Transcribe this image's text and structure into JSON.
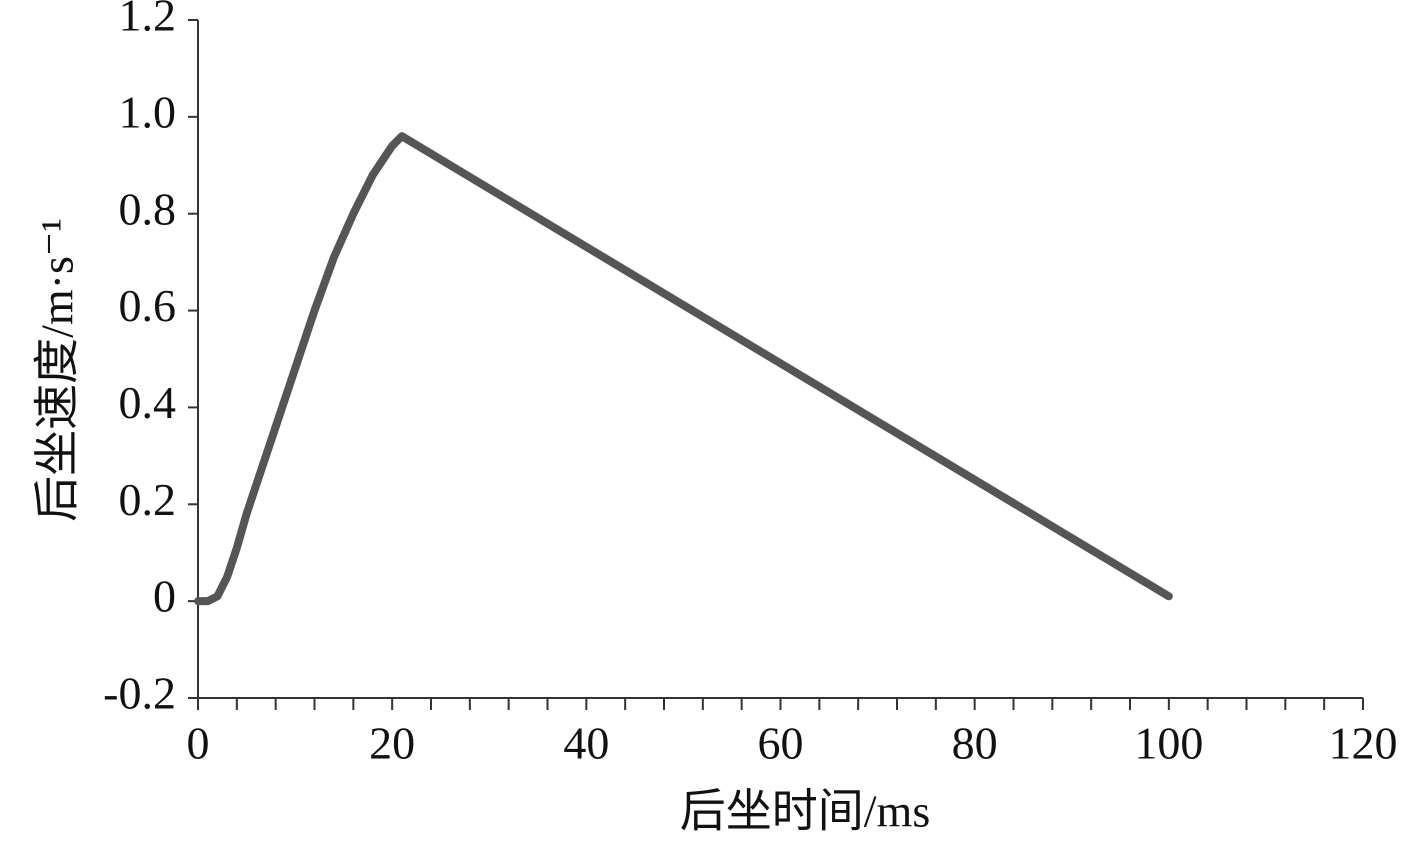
{
  "chart_data": {
    "type": "line",
    "xlabel": "后坐时间/ms",
    "ylabel": "后坐速度/m·s⁻¹",
    "x": [
      0,
      1,
      2,
      3,
      4,
      5,
      6,
      8,
      10,
      12,
      14,
      16,
      18,
      20,
      21,
      100
    ],
    "series": [
      {
        "color": "#555555",
        "values": [
          0,
          0,
          0.01,
          0.05,
          0.11,
          0.18,
          0.24,
          0.36,
          0.48,
          0.6,
          0.71,
          0.8,
          0.88,
          0.94,
          0.96,
          0.01
        ]
      }
    ],
    "xlim": [
      0,
      120
    ],
    "xticks": [
      0,
      20,
      40,
      60,
      80,
      100,
      120
    ],
    "x_minor_ticks": [
      4,
      8,
      12,
      16,
      24,
      28,
      32,
      36,
      44,
      48,
      52,
      56,
      64,
      68,
      72,
      76,
      84,
      88,
      92,
      96,
      104,
      108,
      112,
      116
    ],
    "ylim": [
      -0.2,
      1.2
    ],
    "yticks": [
      1.2,
      {
        "value": 1.0,
        "label": "1.0"
      },
      0.8,
      0.6,
      0.4,
      0.2,
      0,
      -0.2
    ]
  }
}
